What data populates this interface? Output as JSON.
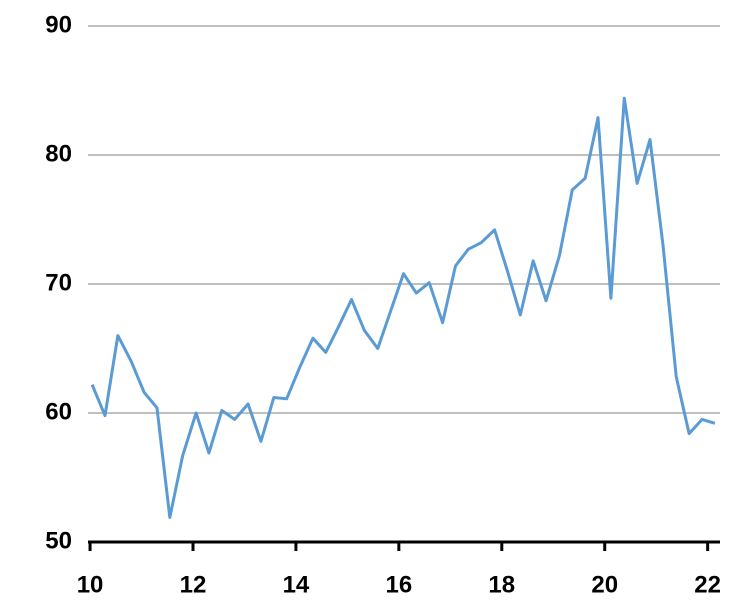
{
  "chart_data": {
    "type": "line",
    "x": [
      10.04,
      10.29,
      10.54,
      10.8,
      11.05,
      11.3,
      11.55,
      11.8,
      12.06,
      12.31,
      12.56,
      12.81,
      13.07,
      13.32,
      13.57,
      13.82,
      14.07,
      14.33,
      14.58,
      14.83,
      15.08,
      15.33,
      15.59,
      15.84,
      16.09,
      16.34,
      16.59,
      16.85,
      17.1,
      17.35,
      17.6,
      17.86,
      18.11,
      18.36,
      18.61,
      18.86,
      19.12,
      19.37,
      19.62,
      19.87,
      20.12,
      20.38,
      20.63,
      20.88,
      21.13,
      21.39,
      21.64,
      21.89,
      22.14
    ],
    "series": [
      {
        "color": "#5b9bd5",
        "values": [
          62.2,
          59.8,
          66.0,
          64.0,
          61.6,
          60.4,
          51.9,
          56.7,
          60.0,
          56.9,
          60.2,
          59.5,
          60.7,
          57.8,
          61.2,
          61.1,
          63.5,
          65.8,
          64.7,
          66.7,
          68.8,
          66.4,
          65.0,
          67.9,
          70.8,
          69.3,
          70.1,
          67.0,
          71.4,
          72.7,
          73.2,
          74.2,
          71.0,
          67.6,
          71.8,
          68.7,
          72.2,
          77.3,
          78.2,
          82.9,
          68.9,
          84.4,
          77.8,
          81.2,
          73.1,
          62.8,
          58.4,
          59.5,
          59.2
        ]
      }
    ],
    "xlim": [
      9.96,
      22.24
    ],
    "xticks": [
      10,
      12,
      14,
      16,
      18,
      20,
      22
    ],
    "ylim": [
      50,
      90
    ],
    "yticks": [
      50,
      60,
      70,
      80,
      90
    ],
    "grid": true
  }
}
